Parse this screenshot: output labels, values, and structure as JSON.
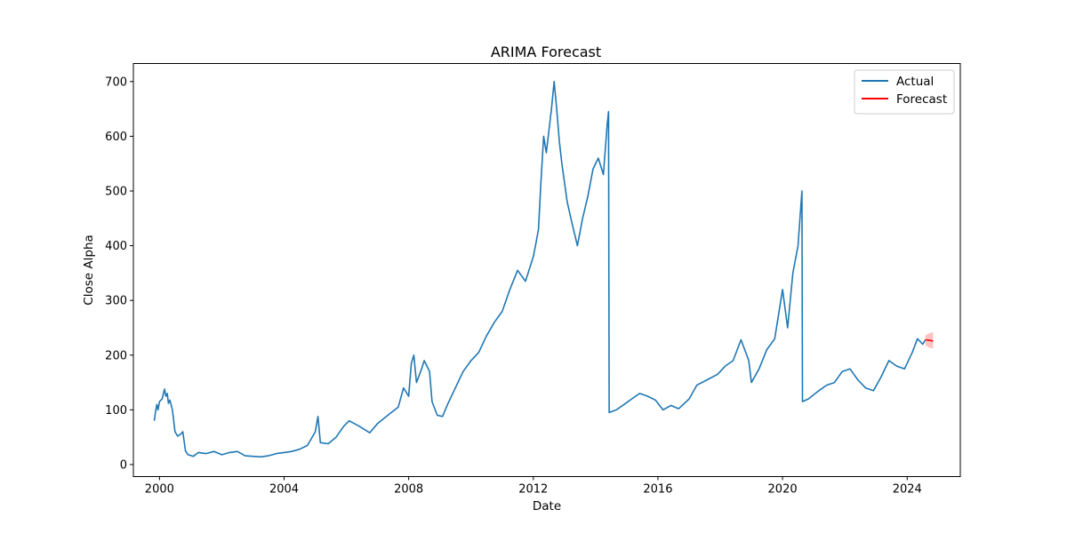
{
  "chart_data": {
    "type": "line",
    "title": "ARIMA Forecast",
    "xlabel": "Date",
    "ylabel": "Close Alpha",
    "x_range": [
      "1999-03-01",
      "2025-09-15"
    ],
    "y_range": [
      -22,
      733
    ],
    "x_ticks": [
      "2000",
      "2004",
      "2008",
      "2012",
      "2016",
      "2020",
      "2024"
    ],
    "y_ticks": [
      0,
      100,
      200,
      300,
      400,
      500,
      600,
      700
    ],
    "legend_position": "top-right",
    "grid": false,
    "series": [
      {
        "name": "Actual",
        "color": "#1f77b4",
        "points": [
          [
            "1999-11-01",
            80
          ],
          [
            "1999-11-15",
            95
          ],
          [
            "1999-12-01",
            110
          ],
          [
            "1999-12-15",
            100
          ],
          [
            "2000-01-01",
            115
          ],
          [
            "2000-02-01",
            120
          ],
          [
            "2000-03-01",
            138
          ],
          [
            "2000-03-15",
            125
          ],
          [
            "2000-04-01",
            130
          ],
          [
            "2000-04-15",
            112
          ],
          [
            "2000-05-01",
            118
          ],
          [
            "2000-06-01",
            100
          ],
          [
            "2000-07-01",
            60
          ],
          [
            "2000-08-01",
            52
          ],
          [
            "2000-09-01",
            55
          ],
          [
            "2000-10-01",
            60
          ],
          [
            "2000-11-01",
            25
          ],
          [
            "2000-12-01",
            18
          ],
          [
            "2001-02-01",
            15
          ],
          [
            "2001-04-01",
            22
          ],
          [
            "2001-07-01",
            20
          ],
          [
            "2001-10-01",
            24
          ],
          [
            "2002-01-01",
            18
          ],
          [
            "2002-04-01",
            22
          ],
          [
            "2002-07-01",
            24
          ],
          [
            "2002-10-01",
            16
          ],
          [
            "2003-01-01",
            15
          ],
          [
            "2003-04-01",
            14
          ],
          [
            "2003-07-01",
            16
          ],
          [
            "2003-10-01",
            20
          ],
          [
            "2004-01-01",
            22
          ],
          [
            "2004-04-01",
            24
          ],
          [
            "2004-07-01",
            28
          ],
          [
            "2004-10-01",
            35
          ],
          [
            "2005-01-01",
            60
          ],
          [
            "2005-02-01",
            88
          ],
          [
            "2005-03-01",
            40
          ],
          [
            "2005-06-01",
            38
          ],
          [
            "2005-09-01",
            50
          ],
          [
            "2005-12-01",
            70
          ],
          [
            "2006-02-01",
            80
          ],
          [
            "2006-06-01",
            70
          ],
          [
            "2006-10-01",
            58
          ],
          [
            "2007-01-01",
            75
          ],
          [
            "2007-05-01",
            90
          ],
          [
            "2007-09-01",
            105
          ],
          [
            "2007-11-01",
            140
          ],
          [
            "2008-01-01",
            125
          ],
          [
            "2008-02-01",
            185
          ],
          [
            "2008-03-01",
            200
          ],
          [
            "2008-04-01",
            150
          ],
          [
            "2008-06-01",
            175
          ],
          [
            "2008-07-01",
            190
          ],
          [
            "2008-09-01",
            170
          ],
          [
            "2008-10-01",
            115
          ],
          [
            "2008-12-01",
            90
          ],
          [
            "2009-02-01",
            88
          ],
          [
            "2009-04-01",
            110
          ],
          [
            "2009-07-01",
            140
          ],
          [
            "2009-10-01",
            170
          ],
          [
            "2010-01-01",
            190
          ],
          [
            "2010-04-01",
            205
          ],
          [
            "2010-07-01",
            235
          ],
          [
            "2010-10-01",
            260
          ],
          [
            "2011-01-01",
            280
          ],
          [
            "2011-04-01",
            320
          ],
          [
            "2011-07-01",
            355
          ],
          [
            "2011-10-01",
            335
          ],
          [
            "2012-01-01",
            380
          ],
          [
            "2012-02-01",
            405
          ],
          [
            "2012-03-01",
            430
          ],
          [
            "2012-04-01",
            520
          ],
          [
            "2012-05-01",
            600
          ],
          [
            "2012-06-01",
            570
          ],
          [
            "2012-07-01",
            610
          ],
          [
            "2012-08-01",
            650
          ],
          [
            "2012-09-01",
            700
          ],
          [
            "2012-10-01",
            650
          ],
          [
            "2012-11-01",
            590
          ],
          [
            "2012-12-01",
            550
          ],
          [
            "2013-02-01",
            480
          ],
          [
            "2013-04-01",
            440
          ],
          [
            "2013-06-01",
            400
          ],
          [
            "2013-08-01",
            450
          ],
          [
            "2013-10-01",
            490
          ],
          [
            "2013-12-01",
            540
          ],
          [
            "2014-02-01",
            560
          ],
          [
            "2014-04-01",
            530
          ],
          [
            "2014-05-15",
            620
          ],
          [
            "2014-06-01",
            645
          ],
          [
            "2014-06-08",
            95
          ],
          [
            "2014-09-01",
            100
          ],
          [
            "2014-12-01",
            110
          ],
          [
            "2015-03-01",
            120
          ],
          [
            "2015-06-01",
            130
          ],
          [
            "2015-09-01",
            125
          ],
          [
            "2015-12-01",
            118
          ],
          [
            "2016-03-01",
            100
          ],
          [
            "2016-06-01",
            108
          ],
          [
            "2016-09-01",
            102
          ],
          [
            "2017-01-01",
            120
          ],
          [
            "2017-04-01",
            145
          ],
          [
            "2017-08-01",
            155
          ],
          [
            "2017-12-01",
            165
          ],
          [
            "2018-03-01",
            180
          ],
          [
            "2018-06-01",
            190
          ],
          [
            "2018-09-01",
            228
          ],
          [
            "2018-12-01",
            190
          ],
          [
            "2019-01-01",
            150
          ],
          [
            "2019-04-01",
            175
          ],
          [
            "2019-07-01",
            210
          ],
          [
            "2019-10-01",
            230
          ],
          [
            "2020-01-01",
            320
          ],
          [
            "2020-03-01",
            250
          ],
          [
            "2020-05-01",
            350
          ],
          [
            "2020-07-01",
            400
          ],
          [
            "2020-08-15",
            500
          ],
          [
            "2020-08-22",
            115
          ],
          [
            "2020-11-01",
            120
          ],
          [
            "2021-03-01",
            135
          ],
          [
            "2021-06-01",
            145
          ],
          [
            "2021-09-01",
            150
          ],
          [
            "2021-12-01",
            170
          ],
          [
            "2022-03-01",
            175
          ],
          [
            "2022-06-01",
            155
          ],
          [
            "2022-09-01",
            140
          ],
          [
            "2022-12-01",
            135
          ],
          [
            "2023-03-01",
            160
          ],
          [
            "2023-06-01",
            190
          ],
          [
            "2023-09-01",
            180
          ],
          [
            "2023-12-01",
            175
          ],
          [
            "2024-03-01",
            205
          ],
          [
            "2024-05-01",
            230
          ],
          [
            "2024-07-01",
            220
          ],
          [
            "2024-08-01",
            228
          ]
        ]
      },
      {
        "name": "Forecast",
        "color": "#ff0000",
        "band_color": "#ffb3b3",
        "points": [
          [
            "2024-08-01",
            228
          ],
          [
            "2024-09-15",
            227
          ],
          [
            "2024-10-31",
            226
          ]
        ],
        "band_lower": [
          218,
          214,
          212
        ],
        "band_upper": [
          236,
          240,
          242
        ]
      }
    ]
  }
}
